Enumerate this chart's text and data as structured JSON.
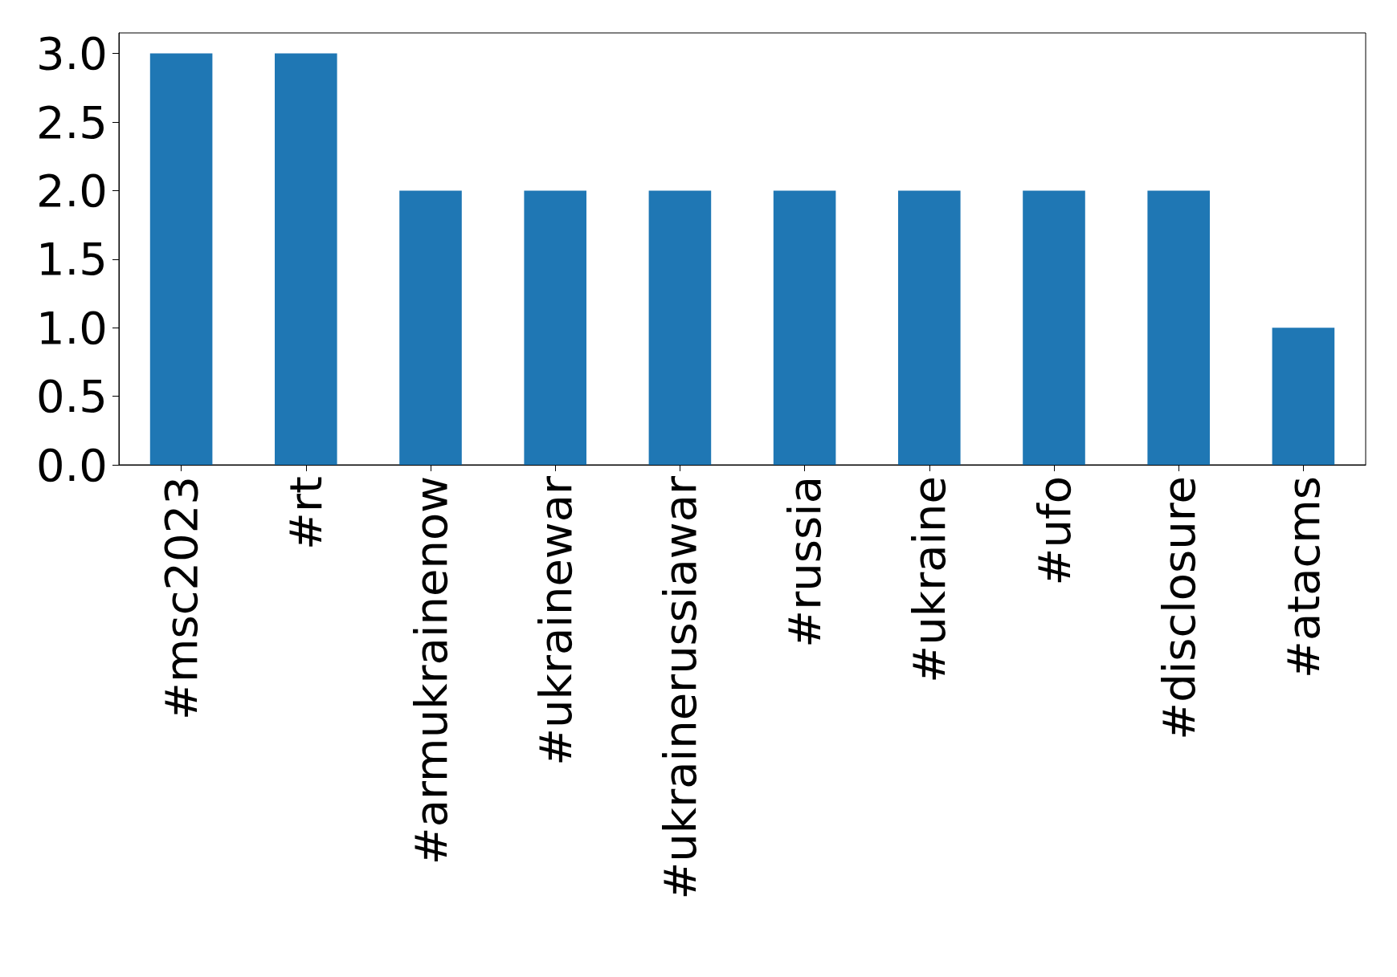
{
  "chart_data": {
    "type": "bar",
    "categories": [
      "#msc2023",
      "#rt",
      "#armukrainenow",
      "#ukrainewar",
      "#ukrainerussiawar",
      "#russia",
      "#ukraine",
      "#ufo",
      "#disclosure",
      "#atacms"
    ],
    "values": [
      3,
      3,
      2,
      2,
      2,
      2,
      2,
      2,
      2,
      1
    ],
    "color": "#1f77b4",
    "ylim": [
      0,
      3.15
    ],
    "yticks": [
      {
        "value": 0,
        "label": "0.0"
      },
      {
        "value": 0.5,
        "label": "0.5"
      },
      {
        "value": 1,
        "label": "1.0"
      },
      {
        "value": 1.5,
        "label": "1.5"
      },
      {
        "value": 2,
        "label": "2.0"
      },
      {
        "value": 2.5,
        "label": "2.5"
      },
      {
        "value": 3,
        "label": "3.0"
      }
    ],
    "grid": false
  }
}
